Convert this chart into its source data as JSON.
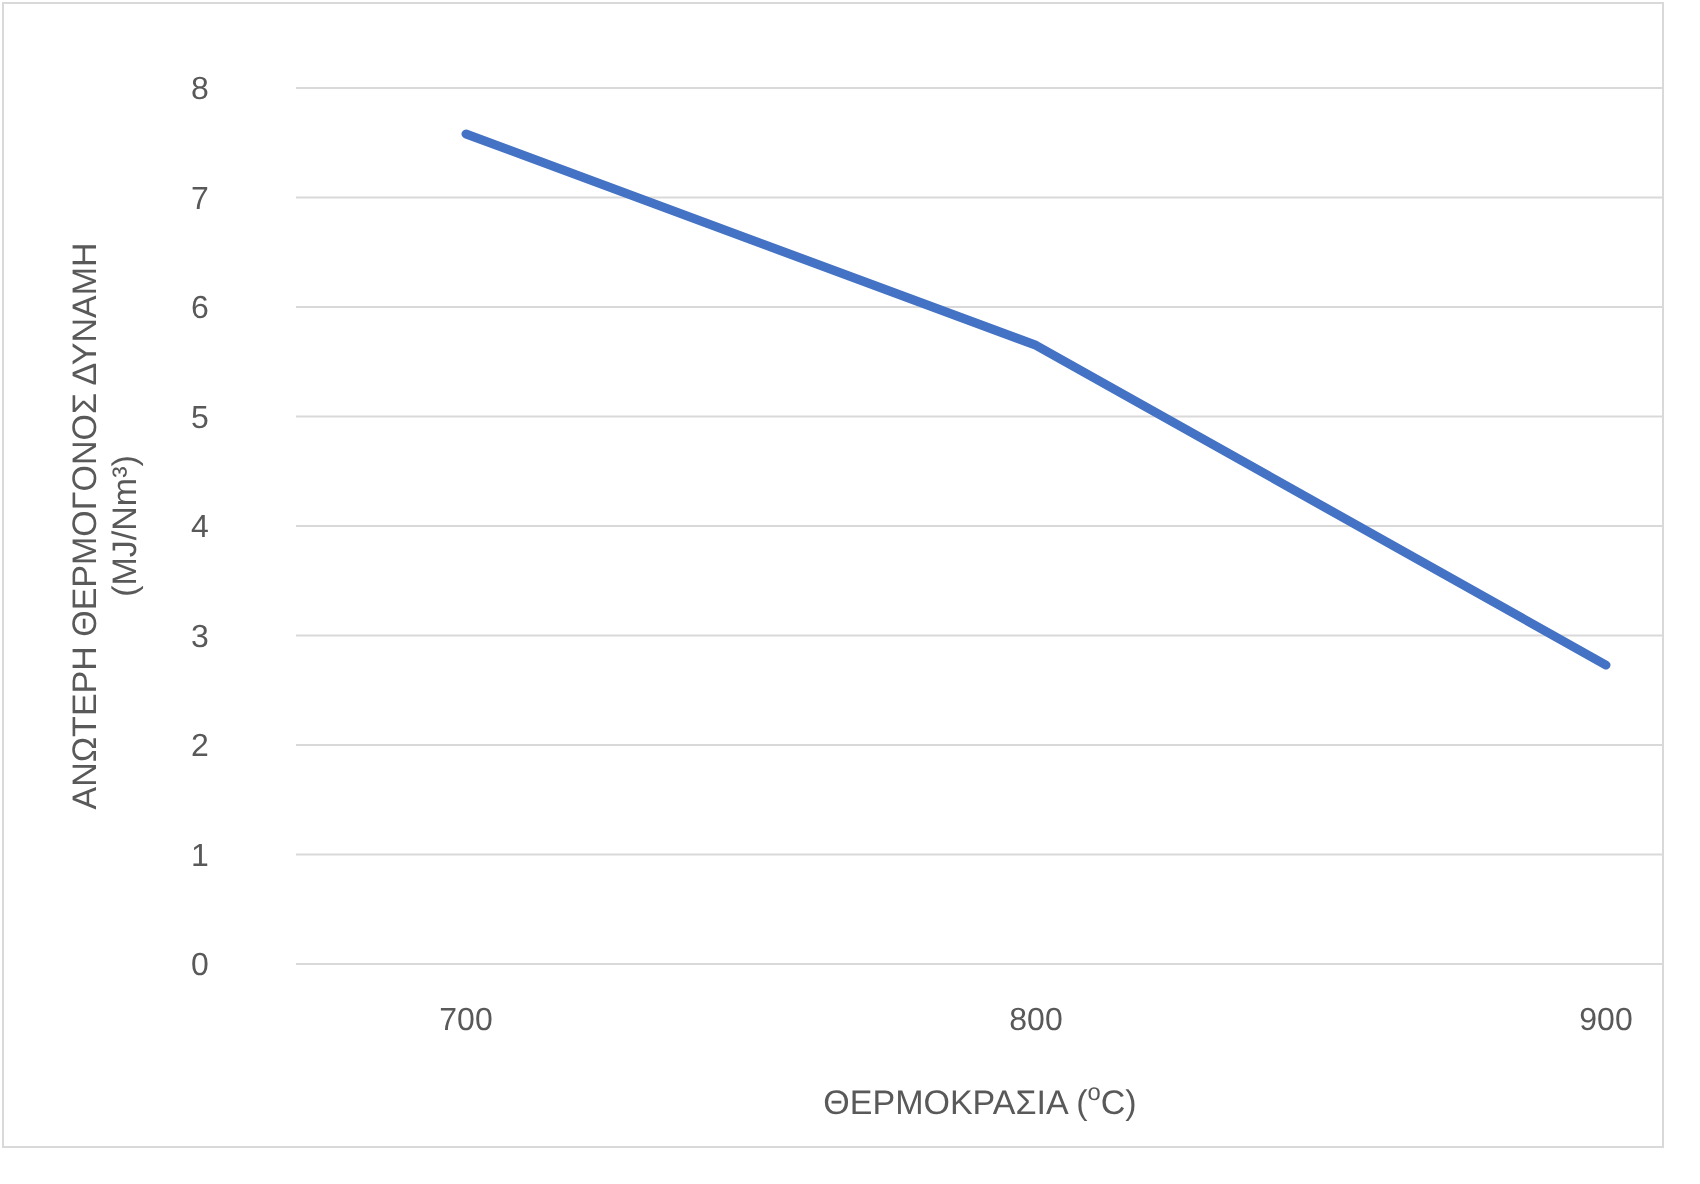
{
  "chart_data": {
    "type": "line",
    "xlabel": "ΘΕΡΜΟΚΡΑΣΙΑ ($^{o}$C)",
    "ylabel": "ΑΝΩΤΕΡΗ ΘΕΡΜΟΓΟΝΟΣ ΔΥΝΑΜΗ\n(MJ/Nm³)",
    "categories": [
      "700",
      "800",
      "900"
    ],
    "series": [
      {
        "color": "#4472c4",
        "values": [
          7.58,
          5.65,
          2.73
        ]
      }
    ],
    "ylim": [
      0,
      8
    ],
    "yticks": [
      0,
      1,
      2,
      3,
      4,
      5,
      6,
      7,
      8
    ],
    "grid": "y",
    "marker": "none",
    "line_style": "solid"
  }
}
